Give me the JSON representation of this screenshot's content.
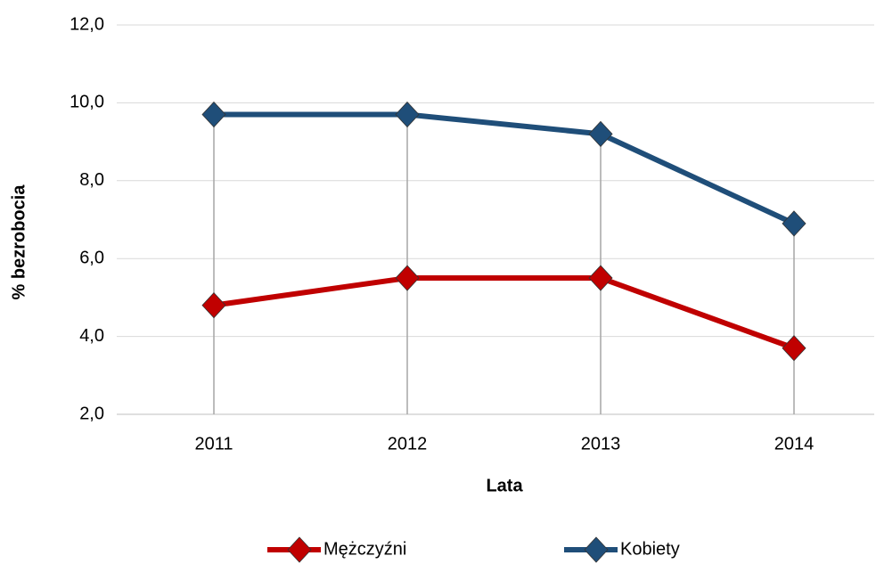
{
  "chart_data": {
    "type": "line",
    "xlabel": "Lata",
    "ylabel": "% bezrobocia",
    "categories": [
      "2011",
      "2012",
      "2013",
      "2014"
    ],
    "series": [
      {
        "name": "Mężczyźni",
        "color": "#c00000",
        "values": [
          4.8,
          5.5,
          5.5,
          3.7
        ]
      },
      {
        "name": "Kobiety",
        "color": "#1f4e79",
        "values": [
          9.7,
          9.7,
          9.2,
          6.9
        ]
      }
    ],
    "ylim": [
      2,
      12
    ],
    "yticks": [
      {
        "value": 2,
        "label": "2,0"
      },
      {
        "value": 4,
        "label": "4,0"
      },
      {
        "value": 6,
        "label": "6,0"
      },
      {
        "value": 8,
        "label": "8,0"
      },
      {
        "value": 10,
        "label": "10,0"
      },
      {
        "value": 12,
        "label": "12,0"
      }
    ],
    "grid": true,
    "legend": "bottom"
  }
}
